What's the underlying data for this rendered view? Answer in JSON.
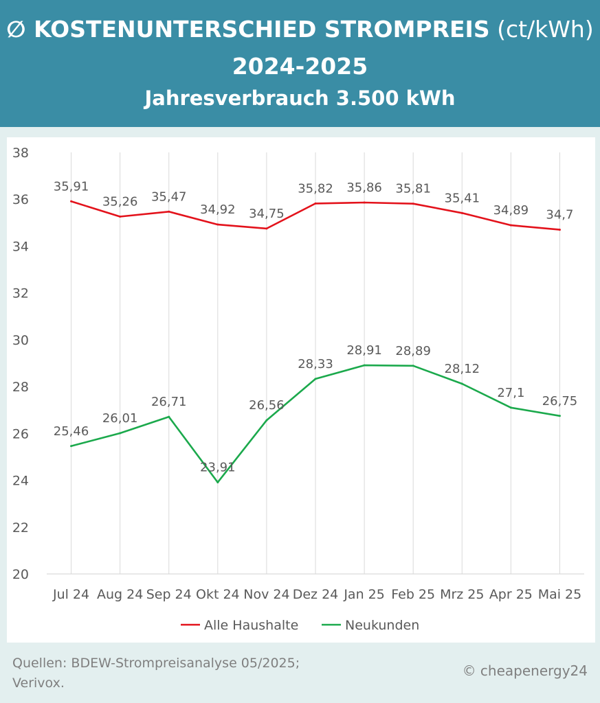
{
  "header": {
    "title_symbol": "∅",
    "title_bold": "KOSTENUNTERSCHIED STROMPREIS",
    "title_unit": "(ct/kWh)",
    "years": "2024-2025",
    "subtitle": "Jahresverbrauch 3.500 kWh"
  },
  "colors": {
    "header_bg": "#3a8da5",
    "series_alle": "#e3121b",
    "series_neukunden": "#1ba94c",
    "gridline": "#d9d9d9"
  },
  "chart_data": {
    "type": "line",
    "title": "∅ KOSTENUNTERSCHIED STROMPREIS (ct/kWh) 2024-2025",
    "categories": [
      "Jul 24",
      "Aug 24",
      "Sep 24",
      "Okt 24",
      "Nov 24",
      "Dez 24",
      "Jan 25",
      "Feb 25",
      "Mrz 25",
      "Apr 25",
      "Mai 25"
    ],
    "ylim": [
      20,
      38
    ],
    "yticks": [
      "20",
      "22",
      "24",
      "26",
      "28",
      "30",
      "32",
      "34",
      "36",
      "38"
    ],
    "grid": "vertical",
    "legend_position": "bottom",
    "series": [
      {
        "name": "Alle Haushalte",
        "values": [
          35.91,
          35.26,
          35.47,
          34.92,
          34.75,
          35.82,
          35.86,
          35.81,
          35.41,
          34.89,
          34.7
        ],
        "labels": [
          "35,91",
          "35,26",
          "35,47",
          "34,92",
          "34,75",
          "35,82",
          "35,86",
          "35,81",
          "35,41",
          "34,89",
          "34,7"
        ]
      },
      {
        "name": "Neukunden",
        "values": [
          25.46,
          26.01,
          26.71,
          23.91,
          26.56,
          28.33,
          28.91,
          28.89,
          28.12,
          27.1,
          26.75
        ],
        "labels": [
          "25,46",
          "26,01",
          "26,71",
          "23,91",
          "26,56",
          "28,33",
          "28,91",
          "28,89",
          "28,12",
          "27,1",
          "26,75"
        ]
      }
    ]
  },
  "footer": {
    "sources": "Quellen: BDEW-Strompreisanalyse 05/2025; Verivox.",
    "copyright": "© cheapenergy24"
  }
}
